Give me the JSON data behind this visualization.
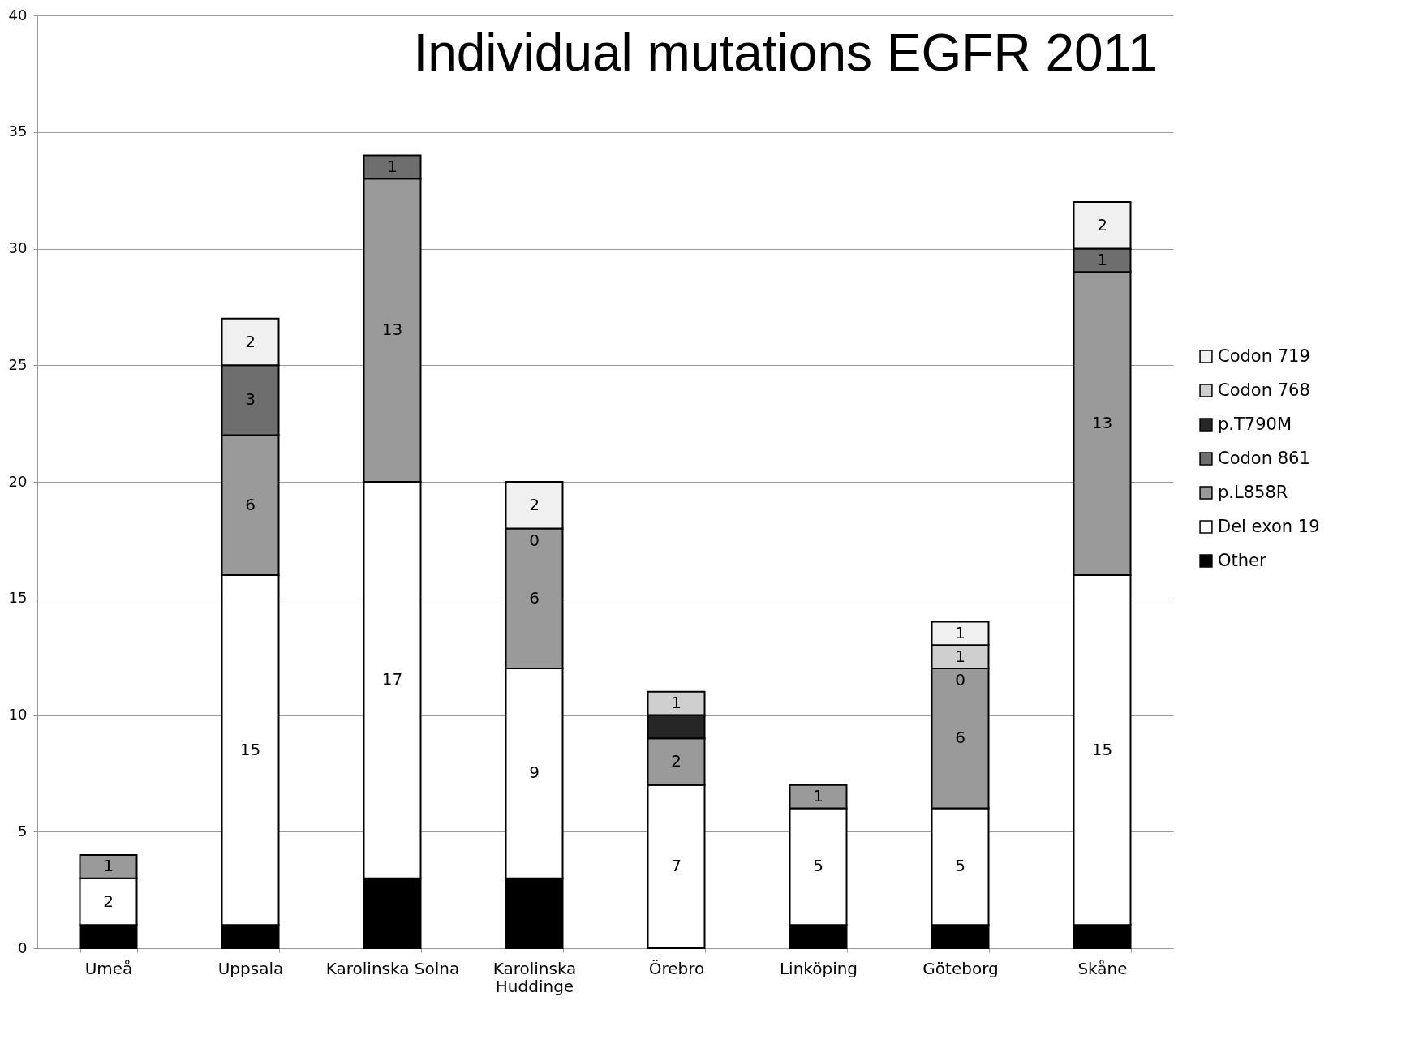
{
  "chart_data": {
    "type": "bar",
    "title": "Individual mutations EGFR 2011",
    "stacked": true,
    "categories": [
      "Umeå",
      "Uppsala",
      "Karolinska Solna",
      "Karolinska Huddinge",
      "Örebro",
      "Linköping",
      "Göteborg",
      "Skåne"
    ],
    "series": [
      {
        "name": "Other",
        "color": "#000000",
        "values": [
          1,
          1,
          3,
          3,
          0,
          1,
          1,
          1
        ],
        "value_labels": [
          null,
          null,
          null,
          null,
          null,
          null,
          null,
          null
        ]
      },
      {
        "name": "Del exon 19",
        "color": "#ffffff",
        "values": [
          2,
          15,
          17,
          9,
          7,
          5,
          5,
          15
        ],
        "value_labels": [
          "2",
          "15",
          "17",
          "9",
          "7",
          "5",
          "5",
          "15"
        ]
      },
      {
        "name": "p.L858R",
        "color": "#9a9a9a",
        "values": [
          1,
          6,
          13,
          6,
          2,
          1,
          6,
          13
        ],
        "value_labels": [
          "1",
          "6",
          "13",
          "6",
          "2",
          "1",
          "6",
          "13"
        ]
      },
      {
        "name": "Codon 861",
        "color": "#6e6e6e",
        "values": [
          0,
          3,
          1,
          0,
          0,
          0,
          0,
          1
        ],
        "value_labels": [
          null,
          "3",
          "1",
          "0",
          null,
          null,
          "0",
          "1"
        ]
      },
      {
        "name": "p.T790M",
        "color": "#262626",
        "values": [
          0,
          0,
          0,
          0,
          1,
          0,
          0,
          0
        ],
        "value_labels": [
          null,
          null,
          null,
          null,
          null,
          null,
          null,
          null
        ]
      },
      {
        "name": "Codon 768",
        "color": "#cfcfcf",
        "values": [
          0,
          0,
          0,
          0,
          1,
          0,
          1,
          0
        ],
        "value_labels": [
          null,
          null,
          null,
          null,
          "1",
          null,
          "1",
          null
        ]
      },
      {
        "name": "Codon 719",
        "color": "#f0f0f0",
        "values": [
          0,
          2,
          0,
          2,
          0,
          0,
          1,
          2
        ],
        "value_labels": [
          null,
          "2",
          null,
          "2",
          null,
          null,
          "1",
          "2"
        ]
      }
    ],
    "ylim": [
      0,
      40
    ],
    "yticks": [
      0,
      5,
      10,
      15,
      20,
      25,
      30,
      35,
      40
    ],
    "grid": "y",
    "legend": "right"
  }
}
